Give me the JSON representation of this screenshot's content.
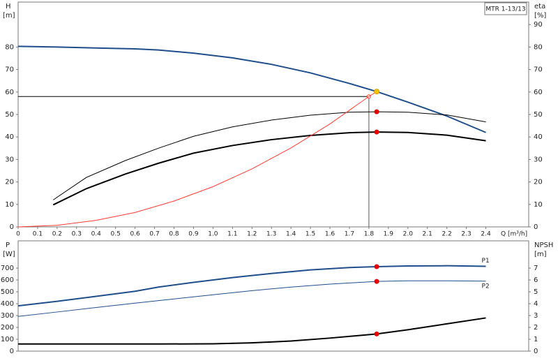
{
  "chart_data": [
    {
      "type": "line",
      "title": "MTR 1-13/13",
      "y_label": "H",
      "y_unit": "[m]",
      "y2_label": "eta",
      "y2_unit": "[%]",
      "x_label": "Q [m³/h]",
      "xlim": [
        0,
        2.62
      ],
      "xticks": [
        0,
        0.1,
        0.2,
        0.3,
        0.4,
        0.5,
        0.6,
        0.7,
        0.8,
        0.9,
        {
          "value": 1,
          "label": "1.0"
        },
        1.1,
        1.2,
        1.3,
        1.4,
        1.5,
        1.6,
        1.7,
        1.8,
        1.9,
        {
          "value": 2,
          "label": "2.0"
        },
        2.1,
        2.2,
        2.3,
        2.4
      ],
      "ylim": [
        0,
        100
      ],
      "yticks": [
        0,
        10,
        20,
        30,
        40,
        50,
        60,
        70,
        80
      ],
      "y2lim": [
        0,
        100
      ],
      "y2ticks": [
        0,
        10,
        20,
        30,
        40,
        50,
        60,
        70,
        80,
        90
      ],
      "duty_point": {
        "x": 1.8,
        "y": 58
      },
      "series": [
        {
          "color": "#1f4e8c",
          "line_width": 2,
          "x": [
            0,
            0.2,
            0.4,
            0.6,
            0.72,
            0.9,
            1.1,
            1.3,
            1.5,
            1.7,
            1.84,
            2.0,
            2.2,
            2.4
          ],
          "values": [
            80.3,
            80,
            79.6,
            79.2,
            78.7,
            77.3,
            75.2,
            72.3,
            68.5,
            63.8,
            60.2,
            55.5,
            49.3,
            42
          ]
        },
        {
          "color": "#000000",
          "line_width": 1,
          "axis": "y2",
          "x": [
            0.18,
            0.35,
            0.55,
            0.72,
            0.9,
            1.1,
            1.3,
            1.5,
            1.7,
            1.84,
            2.0,
            2.2,
            2.4
          ],
          "values": [
            12,
            22,
            29.5,
            35,
            40.3,
            44.5,
            47.5,
            49.7,
            51,
            51.2,
            51,
            49.8,
            46.7
          ]
        },
        {
          "color": "#000000",
          "line_width": 2,
          "axis": "y2",
          "x": [
            0.18,
            0.35,
            0.55,
            0.72,
            0.9,
            1.1,
            1.3,
            1.5,
            1.7,
            1.84,
            2.0,
            2.2,
            2.4
          ],
          "values": [
            9.8,
            17,
            23.5,
            28.3,
            32.8,
            36.2,
            38.8,
            40.7,
            41.9,
            42.2,
            42,
            40.8,
            38.3
          ]
        },
        {
          "color": "#ff3b30",
          "line_width": 1,
          "x": [
            0,
            0.2,
            0.4,
            0.6,
            0.8,
            1.0,
            1.2,
            1.4,
            1.6,
            1.8,
            1.84
          ],
          "values": [
            0,
            0.7,
            2.9,
            6.4,
            11.5,
            17.9,
            25.8,
            35.1,
            45.8,
            58,
            60.2
          ]
        }
      ],
      "markers": [
        {
          "x": 1.84,
          "y": 60.2,
          "color": "#f5c400"
        },
        {
          "x": 1.84,
          "y": 51.2,
          "color": "#e60000",
          "axis": "y2"
        },
        {
          "x": 1.84,
          "y": 42.2,
          "color": "#e60000",
          "axis": "y2"
        }
      ]
    },
    {
      "type": "line",
      "y_label": "P",
      "y_unit": "[W]",
      "y2_label": "NPSH",
      "y2_unit": "[m]",
      "xlim": [
        0,
        2.62
      ],
      "ylim": [
        0,
        930
      ],
      "yticks": [
        0,
        100,
        200,
        300,
        400,
        500,
        600,
        700
      ],
      "y2lim": [
        0,
        9.3
      ],
      "y2ticks": [
        0,
        1,
        2,
        3,
        4,
        5,
        6,
        7
      ],
      "series": [
        {
          "name": "P1",
          "color": "#1f4e8c",
          "line_width": 2,
          "x": [
            0,
            0.2,
            0.4,
            0.6,
            0.72,
            0.9,
            1.1,
            1.3,
            1.5,
            1.7,
            1.84,
            2.0,
            2.2,
            2.4
          ],
          "values": [
            382,
            420,
            462,
            505,
            540,
            580,
            620,
            655,
            685,
            705,
            712,
            718,
            720,
            715
          ]
        },
        {
          "name": "P2",
          "color": "#1f4e8c",
          "line_width": 1,
          "x": [
            0,
            0.2,
            0.4,
            0.6,
            0.8,
            1.0,
            1.2,
            1.4,
            1.6,
            1.84,
            2.0,
            2.2,
            2.4
          ],
          "values": [
            293,
            330,
            368,
            405,
            440,
            475,
            510,
            540,
            565,
            588,
            593,
            593,
            590
          ]
        },
        {
          "color": "#000000",
          "line_width": 2,
          "axis": "y2",
          "x": [
            0,
            0.72,
            1.0,
            1.2,
            1.4,
            1.6,
            1.84,
            2.0,
            2.2,
            2.4
          ],
          "values": [
            0.6,
            0.6,
            0.62,
            0.7,
            0.85,
            1.1,
            1.45,
            1.8,
            2.3,
            2.8
          ]
        }
      ],
      "markers": [
        {
          "x": 1.84,
          "y": 712,
          "color": "#e60000"
        },
        {
          "x": 1.84,
          "y": 588,
          "color": "#e60000"
        },
        {
          "x": 1.84,
          "y": 1.45,
          "color": "#e60000",
          "axis": "y2"
        }
      ]
    }
  ]
}
